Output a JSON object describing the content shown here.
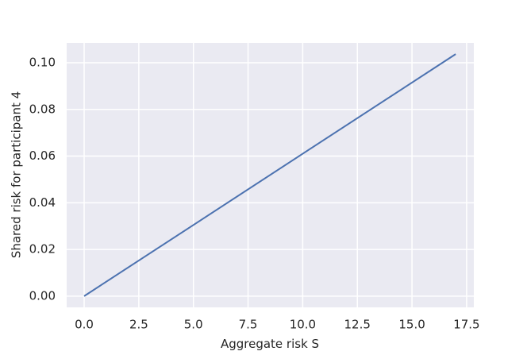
{
  "chart_data": {
    "type": "line",
    "x_label": "Aggregate risk S",
    "y_label": "Shared risk for participant 4",
    "x": [
      0,
      17
    ],
    "series": [
      {
        "color": "#4c72b0",
        "values": [
          0,
          0.1037
        ]
      }
    ],
    "xlim": [
      -0.8,
      17.83
    ],
    "ylim": [
      -0.0048,
      0.1085
    ],
    "xticks": [
      {
        "value": 0,
        "label": "0.0"
      },
      {
        "value": 2.5,
        "label": "2.5"
      },
      {
        "value": 5,
        "label": "5.0"
      },
      {
        "value": 7.5,
        "label": "7.5"
      },
      {
        "value": 10,
        "label": "10.0"
      },
      {
        "value": 12.5,
        "label": "12.5"
      },
      {
        "value": 15,
        "label": "15.0"
      },
      {
        "value": 17.5,
        "label": "17.5"
      }
    ],
    "yticks": [
      {
        "value": 0,
        "label": "0.00"
      },
      {
        "value": 0.02,
        "label": "0.02"
      },
      {
        "value": 0.04,
        "label": "0.04"
      },
      {
        "value": 0.06,
        "label": "0.06"
      },
      {
        "value": 0.08,
        "label": "0.08"
      },
      {
        "value": 0.1,
        "label": "0.10"
      }
    ],
    "grid": true
  }
}
